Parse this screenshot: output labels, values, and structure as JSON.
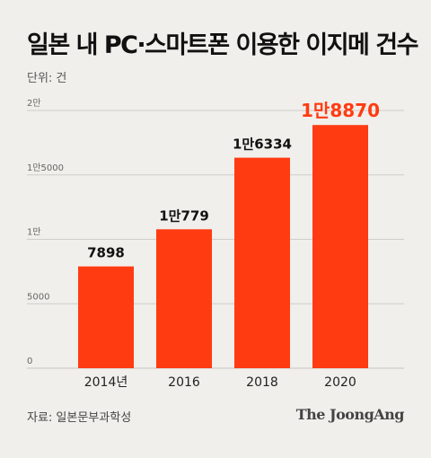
{
  "title": "일본 내 PC·스마트폰 이용한 이지메 건수",
  "unit_label": "단위: 건",
  "source": "자료: 일본문부과학성",
  "logo": "The JoongAng",
  "colors": {
    "bar": "#ff3b12",
    "highlight_label": "#ff3b12",
    "grid": "#cfcdc9",
    "background": "#f1efeb"
  },
  "chart_data": {
    "type": "bar",
    "categories": [
      "2014년",
      "2016",
      "2018",
      "2020"
    ],
    "values": [
      7898,
      10779,
      16334,
      18870
    ],
    "data_labels": [
      "7898",
      "1만779",
      "1만6334",
      "1만8870"
    ],
    "y_ticks": [
      0,
      5000,
      10000,
      15000,
      20000
    ],
    "y_tick_labels": [
      "0",
      "5000",
      "1만",
      "1만5000",
      "2만"
    ],
    "ylim": [
      0,
      20000
    ],
    "highlight_index": 3,
    "grid": true
  }
}
